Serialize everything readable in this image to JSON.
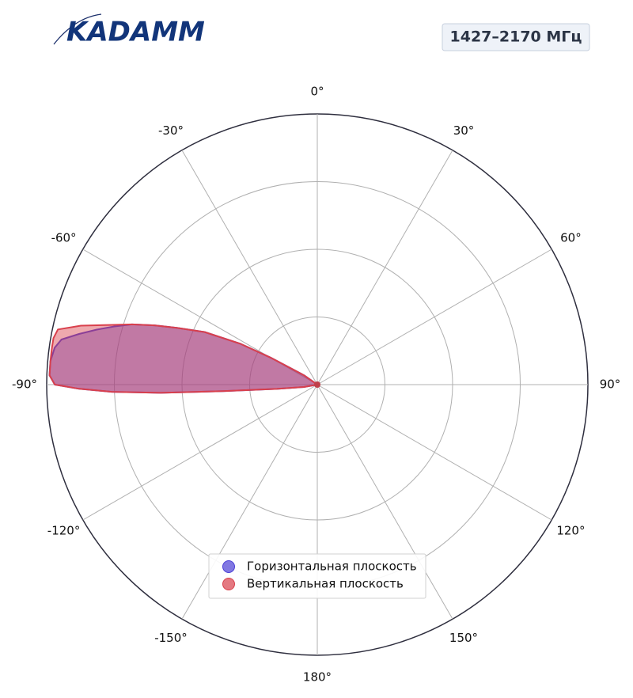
{
  "logo": "KADAMM",
  "chart_data": {
    "type": "polar",
    "title": "1427–2170 МГц",
    "theta": [
      -110,
      -100,
      -96,
      -94,
      -93,
      -92,
      -91,
      -90,
      -88,
      -85,
      -82,
      -80,
      -78,
      -76,
      -74,
      -72,
      -70,
      -68,
      -65,
      -62,
      -60,
      -55,
      -50
    ],
    "series": [
      {
        "name": "Горизонтальная плоскость",
        "color": "#4b3fd6",
        "values": [
          0,
          0.05,
          0.15,
          0.35,
          0.58,
          0.76,
          0.88,
          0.97,
          0.99,
          0.99,
          0.98,
          0.96,
          0.9,
          0.84,
          0.78,
          0.72,
          0.64,
          0.56,
          0.46,
          0.32,
          0.2,
          0.06,
          0
        ]
      },
      {
        "name": "Вертикальная плоскость",
        "color": "#d9404c",
        "values": [
          0,
          0.05,
          0.15,
          0.35,
          0.58,
          0.76,
          0.88,
          0.97,
          0.99,
          0.99,
          0.99,
          0.99,
          0.98,
          0.9,
          0.8,
          0.72,
          0.64,
          0.56,
          0.46,
          0.32,
          0.2,
          0.06,
          0
        ]
      }
    ],
    "rlim": [
      0,
      1
    ],
    "rticks": [
      0.25,
      0.5,
      0.75,
      1
    ],
    "thetaticks": [
      {
        "value": 0,
        "label": "0°"
      },
      {
        "value": 30,
        "label": "30°"
      },
      {
        "value": 60,
        "label": "60°"
      },
      {
        "value": 90,
        "label": "90°"
      },
      {
        "value": 120,
        "label": "120°"
      },
      {
        "value": 150,
        "label": "150°"
      },
      {
        "value": 180,
        "label": "180°"
      },
      {
        "value": -150,
        "label": "-150°"
      },
      {
        "value": -120,
        "label": "-120°"
      },
      {
        "value": -90,
        "label": "-90°"
      },
      {
        "value": -60,
        "label": "-60°"
      },
      {
        "value": -30,
        "label": "-30°"
      }
    ],
    "grid": true,
    "legend": "lower center"
  }
}
